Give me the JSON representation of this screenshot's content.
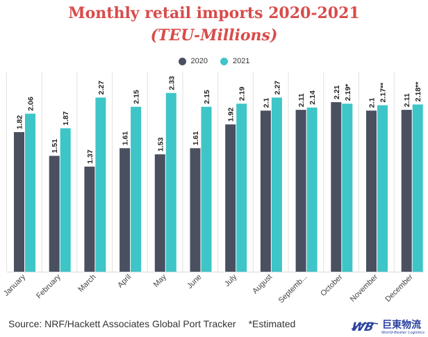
{
  "colors": {
    "title": "#d94b4b",
    "s2020": "#4a5060",
    "s2021": "#3ec5c8",
    "grid": "#e2e2e2"
  },
  "chart_data": {
    "type": "bar",
    "title": "Monthly retail imports 2020-2021",
    "subtitle": "(TEU-Millions)",
    "categories": [
      "January",
      "February",
      "March",
      "April",
      "May",
      "June",
      "July",
      "August",
      "Septemb...",
      "October",
      "November",
      "December"
    ],
    "series": [
      {
        "name": "2020",
        "values": [
          1.82,
          1.51,
          1.37,
          1.61,
          1.53,
          1.61,
          1.92,
          2.1,
          2.11,
          2.21,
          2.1,
          2.11
        ],
        "labels": [
          "1.82",
          "1.51",
          "1.37",
          "1.61",
          "1.53",
          "1.61",
          "1.92",
          "2.1",
          "2.11",
          "2.21",
          "2.1",
          "2.11"
        ]
      },
      {
        "name": "2021",
        "values": [
          2.06,
          1.87,
          2.27,
          2.15,
          2.33,
          2.15,
          2.19,
          2.27,
          2.14,
          2.19,
          2.17,
          2.18
        ],
        "labels": [
          "2.06",
          "1.87",
          "2.27",
          "2.15",
          "2.33",
          "2.15",
          "2.19",
          "2.27",
          "2.14",
          "2.19*",
          "2.17**",
          "2.18**"
        ]
      }
    ],
    "ylim": [
      0,
      2.6
    ],
    "grid": true,
    "legend": "top-center"
  },
  "source": "Source: NRF/Hackett Associates Global Port Tracker",
  "note": "*Estimated",
  "logo": {
    "mark": "WB",
    "name": "巨東物流",
    "tagline": "World-Beater Logistics"
  }
}
